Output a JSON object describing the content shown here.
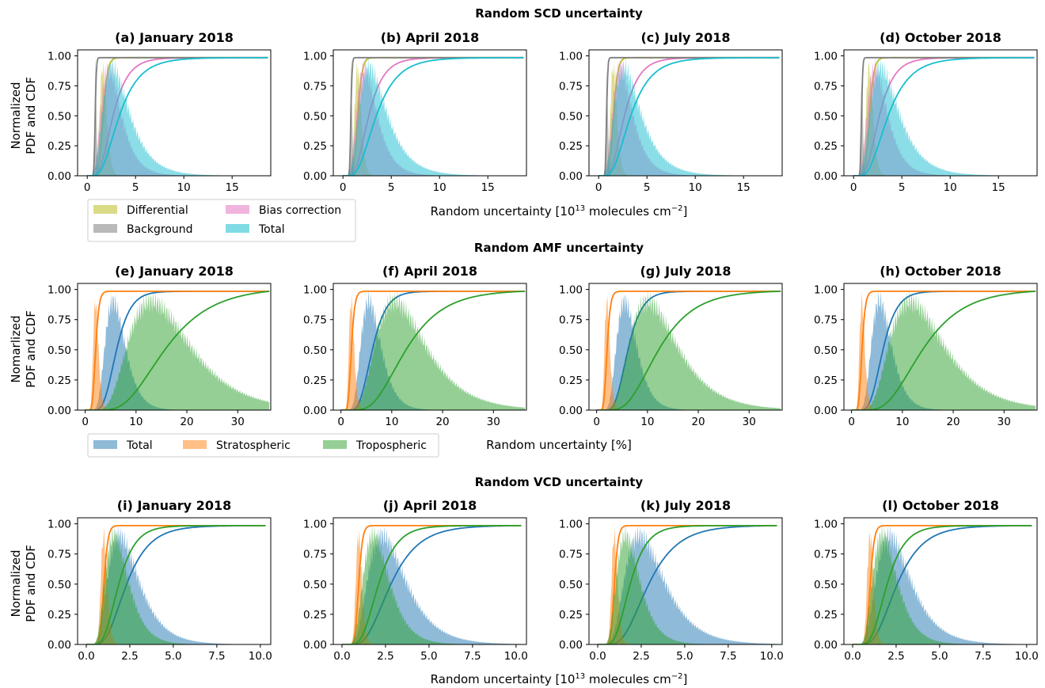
{
  "figure": {
    "row_titles": [
      "Random SCD uncertainty",
      "Random AMF uncertainty",
      "Random VCD uncertainty"
    ],
    "ylabel_lines": [
      "Normalized",
      "PDF and CDF"
    ],
    "ylabel_lines_amf": [
      "Nomarlized",
      "PDF and CDF"
    ]
  },
  "colors": {
    "differential": "#bcbd22",
    "background": "#7f7f7f",
    "bias_correction": "#e377c2",
    "total_scd": "#17becf",
    "total": "#1f77b4",
    "stratospheric": "#ff7f0e",
    "tropospheric": "#2ca02c"
  },
  "legends": {
    "scd": [
      "Differential",
      "Bias correction",
      "Background",
      "Total"
    ],
    "amf": [
      "Total",
      "Stratospheric",
      "Tropospheric"
    ]
  },
  "chart_data": [
    {
      "type": "area",
      "row": "SCD",
      "panels": [
        "(a) January 2018",
        "(b) April 2018",
        "(c) July 2018",
        "(d) October 2018"
      ],
      "xlabel": "Random uncertainty [10^13 molecules cm^-2]",
      "xlabel_parts": [
        "Random uncertainty [10",
        "13",
        " molecules cm",
        "−2",
        "]"
      ],
      "ylabel": "Normalized PDF and CDF",
      "xlim": [
        -1,
        19
      ],
      "ylim": [
        0,
        1.05
      ],
      "xticks": [
        0,
        5,
        10,
        15
      ],
      "xtick_labels": [
        "0",
        "5",
        "10",
        "15"
      ],
      "yticks": [
        0,
        0.25,
        0.5,
        0.75,
        1.0
      ],
      "ytick_labels": [
        "0.00",
        "0.25",
        "0.50",
        "0.75",
        "1.00"
      ],
      "series": [
        {
          "name": "Differential",
          "mode": [
            1.6,
            1.5,
            1.5,
            1.6
          ],
          "spread": 0.22
        },
        {
          "name": "Bias correction",
          "mode": [
            2.2,
            2.2,
            2.2,
            2.2
          ],
          "spread": 0.45
        },
        {
          "name": "Background",
          "mode": [
            0.85,
            0.85,
            0.85,
            0.85
          ],
          "spread": 0.12
        },
        {
          "name": "Total",
          "mode": [
            2.6,
            2.7,
            2.6,
            2.8
          ],
          "spread": 0.5
        }
      ]
    },
    {
      "type": "area",
      "row": "AMF",
      "panels": [
        "(e) January 2018",
        "(f) April 2018",
        "(g) July 2018",
        "(h) October 2018"
      ],
      "xlabel": "Random uncertainty [%]",
      "ylabel": "Nomarlized PDF and CDF",
      "xlim": [
        -1.5,
        36.5
      ],
      "ylim": [
        0,
        1.05
      ],
      "xticks": [
        0,
        10,
        20,
        30
      ],
      "xtick_labels": [
        "0",
        "10",
        "20",
        "30"
      ],
      "yticks": [
        0,
        0.25,
        0.5,
        0.75,
        1.0
      ],
      "ytick_labels": [
        "0.00",
        "0.25",
        "0.50",
        "0.75",
        "1.00"
      ],
      "series": [
        {
          "name": "Total",
          "mode": [
            5.5,
            5.5,
            5.5,
            5.5
          ],
          "spread": 0.35
        },
        {
          "name": "Stratospheric",
          "mode": [
            2.0,
            2.0,
            2.0,
            2.0
          ],
          "spread": 0.25
        },
        {
          "name": "Tropospheric",
          "mode": [
            13.0,
            10.5,
            10.0,
            11.5
          ],
          "spread": 0.45
        }
      ]
    },
    {
      "type": "area",
      "row": "VCD",
      "panels": [
        "(i) January 2018",
        "(j) April 2018",
        "(k) July 2018",
        "(l) October 2018"
      ],
      "xlabel": "Random uncertainty [10^13 molecules cm^-2]",
      "xlabel_parts": [
        "Random uncertainty [10",
        "13",
        " molecules cm",
        "−2",
        "]"
      ],
      "ylabel": "Normalized PDF and CDF",
      "xlim": [
        -0.5,
        10.6
      ],
      "ylim": [
        0,
        1.05
      ],
      "xticks": [
        0,
        2.5,
        5,
        7.5,
        10
      ],
      "xtick_labels": [
        "0.0",
        "2.5",
        "5.0",
        "7.5",
        "10.0"
      ],
      "yticks": [
        0,
        0.25,
        0.5,
        0.75,
        1.0
      ],
      "ytick_labels": [
        "0.00",
        "0.25",
        "0.50",
        "0.75",
        "1.00"
      ],
      "series": [
        {
          "name": "Total",
          "mode": [
            1.9,
            2.3,
            2.4,
            2.1
          ],
          "spread": 0.45
        },
        {
          "name": "Stratospheric",
          "mode": [
            1.0,
            0.95,
            0.95,
            1.0
          ],
          "spread": 0.18
        },
        {
          "name": "Tropospheric",
          "mode": [
            1.6,
            1.8,
            1.6,
            1.7
          ],
          "spread": 0.4
        }
      ]
    }
  ]
}
